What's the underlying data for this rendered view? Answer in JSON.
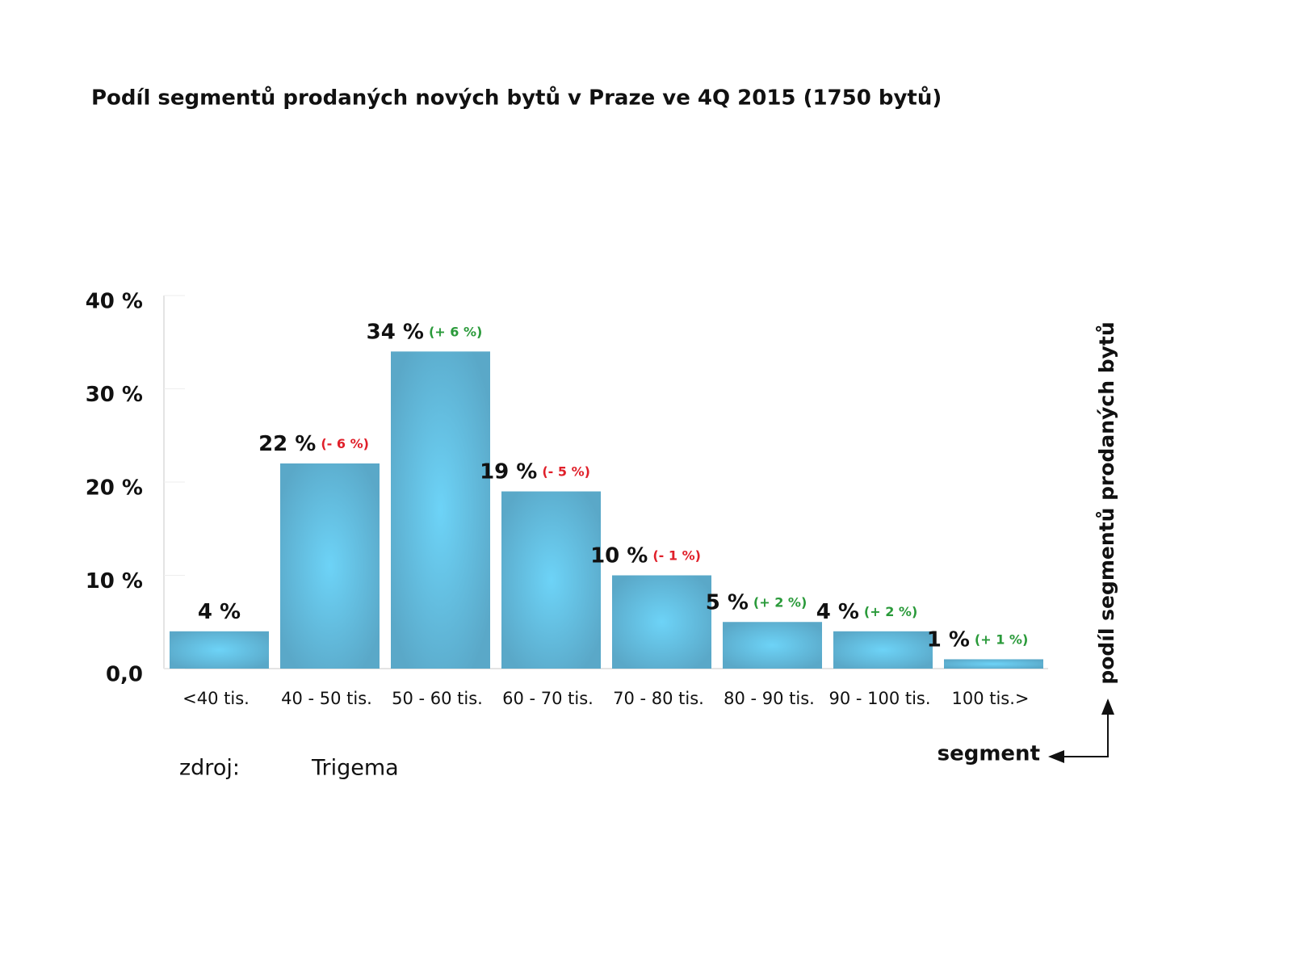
{
  "chart_data": {
    "type": "bar",
    "title": "Podíl segmentů prodaných nových bytů v Praze ve 4Q 2015 (1750 bytů)",
    "categories": [
      "<40 tis.",
      "40 - 50 tis.",
      "50 - 60 tis.",
      "60 - 70 tis.",
      "70 - 80 tis.",
      "80 - 90 tis.",
      "90 - 100 tis.",
      "100 tis.>"
    ],
    "values": [
      4,
      22,
      34,
      19,
      10,
      5,
      4,
      1
    ],
    "value_labels": [
      "4 %",
      "22 %",
      "34 %",
      "19 %",
      "10 %",
      "5 %",
      "4 %",
      "1 %"
    ],
    "changes": [
      null,
      "(- 6 %)",
      "(+ 6 %)",
      "(- 5 %)",
      "(- 1 %)",
      "(+ 2 %)",
      "(+ 2 %)",
      "(+ 1 %)"
    ],
    "change_colors": [
      null,
      "#e0202a",
      "#2a9a3a",
      "#e0202a",
      "#e0202a",
      "#2a9a3a",
      "#2a9a3a",
      "#2a9a3a"
    ],
    "color": "#5aa8c8",
    "ylim": [
      0,
      40
    ],
    "yticks": [
      {
        "value": 0,
        "label": "0,0"
      },
      {
        "value": 10,
        "label": "10 %"
      },
      {
        "value": 20,
        "label": "20 %"
      },
      {
        "value": 30,
        "label": "30 %"
      },
      {
        "value": 40,
        "label": "40 %"
      }
    ],
    "y_label": "podíl segmentů prodaných bytů",
    "x_label": "segment",
    "source_label": "zdroj:",
    "source": "Trigema"
  }
}
